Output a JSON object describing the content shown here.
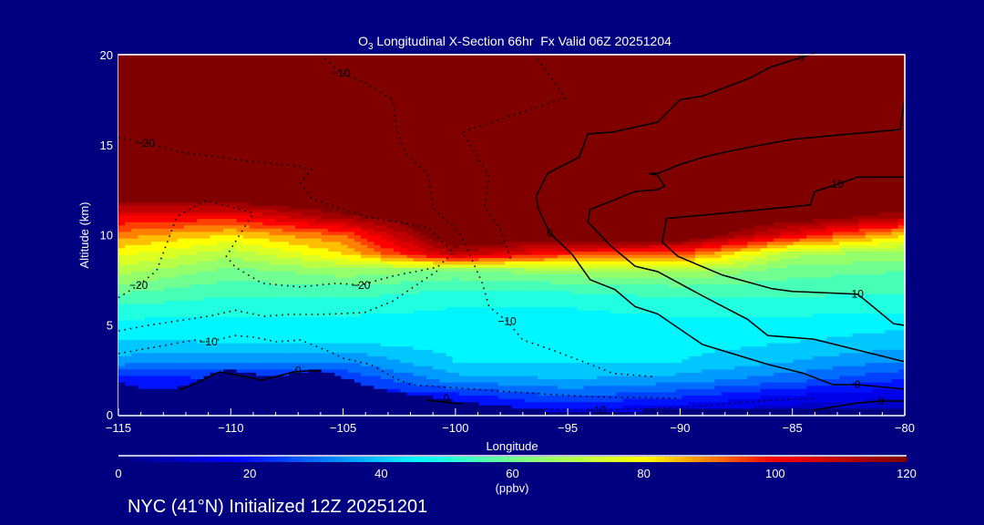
{
  "chart_data": {
    "type": "heatmap",
    "title_prefix": "O",
    "title_sub": "3",
    "title_rest": " Longitudinal X-Section 66hr  Fx Valid 06Z 20251204",
    "xlabel": "Longitude",
    "ylabel": "Altitude (km)",
    "xlim": [
      -115,
      -80
    ],
    "ylim": [
      0,
      20
    ],
    "xticks": [
      -115,
      -110,
      -105,
      -100,
      -95,
      -90,
      -85,
      -80
    ],
    "xtick_labels": [
      "−115",
      "−110",
      "−105",
      "−100",
      "−95",
      "−90",
      "−85",
      "−80"
    ],
    "yticks": [
      0,
      5,
      10,
      15,
      20
    ],
    "ytick_labels": [
      "0",
      "5",
      "10",
      "15",
      "20"
    ],
    "grid": false,
    "colorbar": {
      "label": "(ppbv)",
      "range": [
        0,
        120
      ],
      "ticks": [
        0,
        20,
        40,
        60,
        80,
        100,
        120
      ],
      "tick_labels": [
        "0",
        "20",
        "40",
        "60",
        "80",
        "100",
        "120"
      ],
      "colormap": [
        {
          "v": 0,
          "c": "#000080"
        },
        {
          "v": 18,
          "c": "#0000ff"
        },
        {
          "v": 46,
          "c": "#00ffff"
        },
        {
          "v": 62,
          "c": "#80ff80"
        },
        {
          "v": 80,
          "c": "#ffff00"
        },
        {
          "v": 100,
          "c": "#ff0000"
        },
        {
          "v": 120,
          "c": "#800000"
        }
      ]
    },
    "ozone_grid": {
      "units": "ppbv",
      "longitudes": [
        -115,
        -110,
        -105,
        -100,
        -95,
        -90,
        -85,
        -80
      ],
      "altitudes": [
        0,
        1,
        2,
        3,
        4,
        5,
        6,
        7,
        8,
        9,
        10,
        11,
        12,
        13,
        20
      ],
      "values": [
        [
          20,
          20,
          20,
          20,
          15,
          12,
          10,
          10
        ],
        [
          20,
          20,
          20,
          22,
          30,
          25,
          18,
          15
        ],
        [
          22,
          25,
          25,
          38,
          40,
          38,
          32,
          25
        ],
        [
          38,
          35,
          35,
          45,
          45,
          45,
          40,
          35
        ],
        [
          44,
          45,
          45,
          47,
          47,
          47,
          45,
          42
        ],
        [
          48,
          48,
          48,
          48,
          48,
          48,
          48,
          46
        ],
        [
          54,
          52,
          52,
          50,
          50,
          52,
          52,
          52
        ],
        [
          62,
          57,
          58,
          55,
          56,
          58,
          57,
          56
        ],
        [
          72,
          63,
          68,
          64,
          68,
          70,
          62,
          60
        ],
        [
          82,
          72,
          85,
          115,
          100,
          98,
          72,
          68
        ],
        [
          92,
          85,
          95,
          130,
          130,
          130,
          105,
          85
        ],
        [
          105,
          102,
          118,
          130,
          130,
          130,
          126,
          115
        ],
        [
          122,
          125,
          130,
          130,
          130,
          130,
          130,
          130
        ],
        [
          130,
          130,
          130,
          130,
          130,
          130,
          130,
          130
        ],
        [
          130,
          130,
          130,
          130,
          130,
          130,
          130,
          130
        ]
      ]
    },
    "terrain": {
      "longitudes_start": -115,
      "longitudes_step": 1,
      "height_km": [
        1.9,
        1.5,
        1.4,
        1.6,
        2.3,
        2.5,
        2.3,
        2.1,
        2.4,
        2.5,
        2.1,
        1.7,
        1.35,
        1.15,
        1.0,
        0.8,
        0.65,
        0.5,
        0.4,
        0.25,
        0.15,
        0.15,
        0.2,
        0.25,
        0.3,
        0.3,
        0.3,
        0.3,
        0.3,
        0.3,
        0.3,
        0.3,
        0.3,
        0.3,
        0.3,
        0.3
      ]
    },
    "contours": [
      {
        "level": 0,
        "style": "solid",
        "labels": [
          {
            "text": "0",
            "at": [
              -84.6,
              19.85
            ]
          },
          {
            "text": "0",
            "at": [
              -95.8,
              10.1
            ]
          },
          {
            "text": "0",
            "at": [
              -82.1,
              1.67
            ]
          }
        ],
        "points": [
          [
            -83.97,
            20.1
          ],
          [
            -84.6,
            19.85
          ],
          [
            -86.0,
            19.3
          ],
          [
            -86.9,
            18.7
          ],
          [
            -89.0,
            17.7
          ],
          [
            -90.0,
            17.5
          ],
          [
            -91.0,
            16.25
          ],
          [
            -93.0,
            15.7
          ],
          [
            -94.1,
            15.6
          ],
          [
            -94.5,
            14.3
          ],
          [
            -95.9,
            13.4
          ],
          [
            -96.4,
            12.15
          ],
          [
            -96.3,
            11.4
          ],
          [
            -95.8,
            10.1
          ],
          [
            -94.8,
            8.9
          ],
          [
            -94.0,
            7.5
          ],
          [
            -92.9,
            6.95
          ],
          [
            -92.0,
            6.0
          ],
          [
            -91.0,
            5.6
          ],
          [
            -89.0,
            3.9
          ],
          [
            -87.0,
            3.14
          ],
          [
            -86.1,
            2.8
          ],
          [
            -84.5,
            2.3
          ],
          [
            -83.2,
            1.67
          ],
          [
            -82.1,
            1.67
          ],
          [
            -80,
            1.42
          ]
        ]
      },
      {
        "level": 5,
        "style": "solid",
        "labels": [],
        "points": [
          [
            -80,
            17.6
          ],
          [
            -80.2,
            15.85
          ],
          [
            -85,
            15.3
          ],
          [
            -87.6,
            14.7
          ],
          [
            -89.0,
            14.3
          ],
          [
            -90,
            13.9
          ],
          [
            -91.0,
            13.4
          ],
          [
            -91.4,
            13.4
          ],
          [
            -91.0,
            13.3
          ],
          [
            -90.7,
            12.7
          ],
          [
            -91.0,
            12.5
          ],
          [
            -92.0,
            12.4
          ],
          [
            -94.0,
            11.4
          ],
          [
            -94.1,
            10.7
          ],
          [
            -93.1,
            9.4
          ],
          [
            -92.0,
            8.25
          ],
          [
            -91.0,
            7.95
          ],
          [
            -89.0,
            6.6
          ],
          [
            -87.0,
            5.3
          ],
          [
            -86.1,
            4.4
          ],
          [
            -84.05,
            4.2
          ],
          [
            -80,
            2.94
          ]
        ]
      },
      {
        "level": 10,
        "style": "solid",
        "labels": [
          {
            "text": "10",
            "at": [
              -83.0,
              12.8
            ]
          },
          {
            "text": "10",
            "at": [
              -82.1,
              6.7
            ]
          }
        ],
        "points": [
          [
            -80,
            13.2
          ],
          [
            -82.1,
            13.2
          ],
          [
            -83.0,
            12.8
          ],
          [
            -84.0,
            12.4
          ],
          [
            -84.05,
            12.25
          ],
          [
            -84.2,
            11.65
          ],
          [
            -90.6,
            10.9
          ],
          [
            -90.8,
            9.6
          ],
          [
            -90.1,
            8.8
          ],
          [
            -88.1,
            7.75
          ],
          [
            -85.9,
            7.0
          ],
          [
            -85,
            6.85
          ],
          [
            -82.1,
            6.7
          ],
          [
            -81.6,
            6.2
          ],
          [
            -80.5,
            5.06
          ],
          [
            -80,
            4.96
          ]
        ]
      },
      {
        "level": 0,
        "style": "solid",
        "labels": [
          {
            "text": "0",
            "at": [
              -81.05,
              0.76
            ]
          }
        ],
        "points": [
          [
            -84.05,
            0.25
          ],
          [
            -82.1,
            0.66
          ],
          [
            -81.05,
            0.76
          ],
          [
            -80,
            0.76
          ]
        ]
      },
      {
        "level": 0,
        "style": "solid",
        "labels": [
          {
            "text": "0",
            "at": [
              -107.0,
              2.45
            ]
          }
        ],
        "points": [
          [
            -112.3,
            1.37
          ],
          [
            -111.5,
            1.77
          ],
          [
            -110.5,
            2.38
          ],
          [
            -108.6,
            1.92
          ],
          [
            -107.2,
            2.38
          ],
          [
            -106.6,
            2.43
          ],
          [
            -106.0,
            2.43
          ]
        ]
      },
      {
        "level": 0,
        "style": "solid",
        "labels": [
          {
            "text": "0",
            "at": [
              -100.4,
              0.91
            ]
          }
        ],
        "points": [
          [
            -101.3,
            0.8
          ],
          [
            -99.7,
            0.6
          ]
        ]
      },
      {
        "level": -10,
        "style": "dotted",
        "labels": [
          {
            "text": "−10",
            "at": [
              -105.1,
              19.0
            ]
          },
          {
            "text": "−10",
            "at": [
              -97.7,
              5.2
            ]
          }
        ],
        "points": [
          [
            -106.0,
            20.0
          ],
          [
            -105.1,
            19.0
          ],
          [
            -104.1,
            18.5
          ],
          [
            -102.8,
            17.5
          ],
          [
            -102.6,
            15.8
          ],
          [
            -102.2,
            14.5
          ],
          [
            -101.2,
            13.3
          ],
          [
            -101.0,
            11.5
          ],
          [
            -99.8,
            10.1
          ],
          [
            -98.8,
            7.3
          ],
          [
            -98.5,
            6.0
          ],
          [
            -97.7,
            5.2
          ],
          [
            -97.0,
            4.15
          ],
          [
            -95.8,
            3.65
          ],
          [
            -94,
            2.8
          ],
          [
            -93,
            2.3
          ],
          [
            -91.1,
            2.1
          ]
        ]
      },
      {
        "level": -20,
        "style": "dotted",
        "labels": [
          {
            "text": "−20",
            "at": [
              -113.8,
              15.1
            ]
          }
        ],
        "points": [
          [
            -115,
            15.4
          ],
          [
            -113.8,
            15.1
          ],
          [
            -112.3,
            14.6
          ],
          [
            -109.3,
            14.1
          ],
          [
            -106.9,
            13.8
          ],
          [
            -106.4,
            13.6
          ],
          [
            -106.9,
            12.9
          ],
          [
            -106.4,
            12.0
          ],
          [
            -104.0,
            11.0
          ],
          [
            -101.2,
            10.4
          ],
          [
            -100.1,
            9.0
          ]
        ]
      },
      {
        "level": -20,
        "style": "dotted",
        "labels": [
          {
            "text": "−20",
            "at": [
              -114.1,
              7.2
            ]
          },
          {
            "text": "−20",
            "at": [
              -104.2,
              7.2
            ]
          }
        ],
        "points": [
          [
            -115,
            6.5
          ],
          [
            -114.1,
            7.2
          ],
          [
            -113.3,
            8.0
          ],
          [
            -112.4,
            11.0
          ],
          [
            -111.1,
            11.9
          ],
          [
            -109,
            11.2
          ],
          [
            -110.2,
            8.8
          ],
          [
            -109.8,
            8.2
          ],
          [
            -108.6,
            7.3
          ],
          [
            -106.9,
            7.1
          ],
          [
            -105.3,
            7.3
          ],
          [
            -104.2,
            7.2
          ],
          [
            -102.8,
            7.7
          ],
          [
            -100.8,
            8.2
          ],
          [
            -100.1,
            9.0
          ]
        ]
      },
      {
        "level": -20,
        "style": "dotted",
        "labels": [],
        "points": [
          [
            -96.5,
            20
          ],
          [
            -95.1,
            17.6
          ],
          [
            -99.7,
            15.7
          ],
          [
            -98.5,
            13.3
          ],
          [
            -98.7,
            11.5
          ],
          [
            -98,
            10.3
          ],
          [
            -97.5,
            8.5
          ]
        ]
      },
      {
        "level": -10,
        "style": "dotted",
        "labels": [
          {
            "text": "−10",
            "at": [
              -111.0,
              4.05
            ]
          }
        ],
        "points": [
          [
            -115,
            3.4
          ],
          [
            -111.6,
            4.15
          ],
          [
            -111.0,
            4.05
          ],
          [
            -109.8,
            4.4
          ],
          [
            -108.9,
            4.3
          ],
          [
            -108,
            4.05
          ],
          [
            -106.9,
            4.15
          ],
          [
            -105.5,
            3.45
          ],
          [
            -105,
            3.14
          ],
          [
            -103.8,
            2.8
          ],
          [
            -102.8,
            2.1
          ],
          [
            -102,
            1.67
          ],
          [
            -97.6,
            1.27
          ],
          [
            -94,
            1.0
          ],
          [
            -90,
            0.9
          ]
        ]
      },
      {
        "level": -15,
        "style": "dotted",
        "labels": [],
        "points": [
          [
            -115,
            4.66
          ],
          [
            -113.7,
            4.96
          ],
          [
            -111,
            5.47
          ],
          [
            -109.8,
            5.8
          ],
          [
            -108.5,
            5.47
          ],
          [
            -107.4,
            5.57
          ],
          [
            -106.1,
            5.57
          ],
          [
            -104.05,
            5.67
          ],
          [
            -102.8,
            6.3
          ],
          [
            -100.8,
            8.0
          ]
        ]
      },
      {
        "level": -10,
        "style": "dotted",
        "labels": [
          {
            "text": "−10",
            "at": [
              -93.7,
              0.25
            ]
          }
        ],
        "points": [
          [
            -96,
            0.3
          ],
          [
            -93.7,
            0.25
          ],
          [
            -90,
            0.4
          ],
          [
            -86,
            0.8
          ],
          [
            -84,
            0.9
          ]
        ]
      }
    ]
  },
  "footer": "NYC (41°N) Initialized 12Z 20251201"
}
